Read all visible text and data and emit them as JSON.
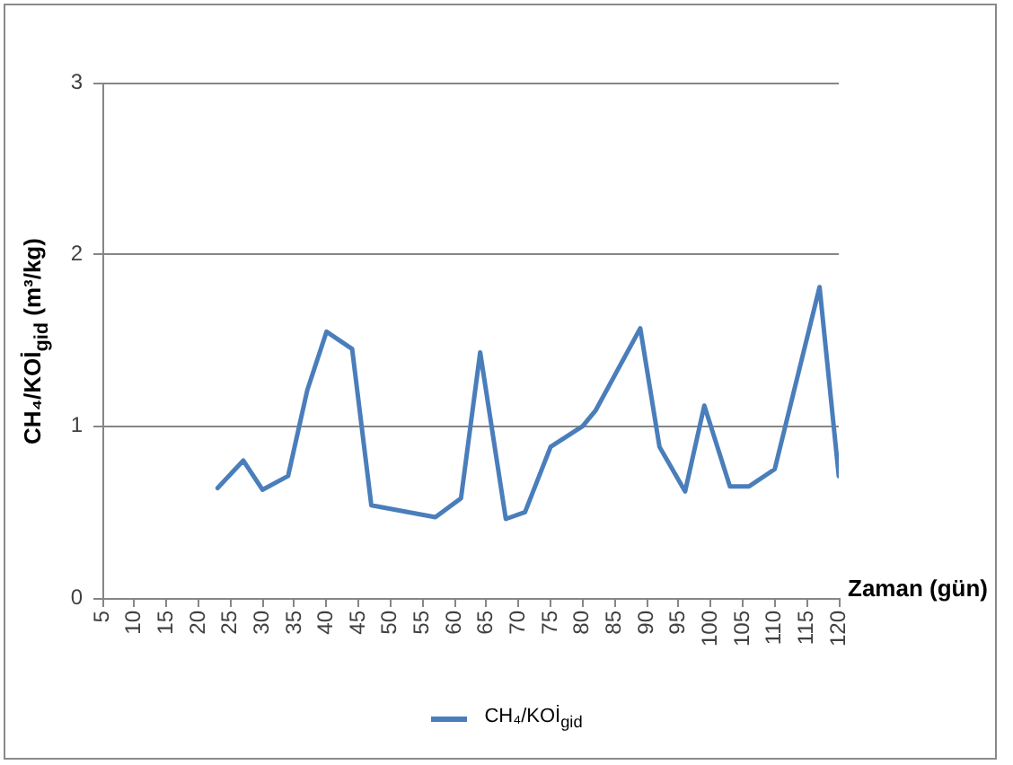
{
  "chart_data": {
    "type": "line",
    "xlabel": "Zaman (gün)",
    "ylabel": "CH₄/KOİ$_{gid}$ (m³/kg)",
    "x": [
      23,
      27,
      30,
      34,
      37,
      40,
      44,
      47,
      57,
      61,
      64,
      68,
      71,
      75,
      80,
      82,
      89,
      92,
      96,
      99,
      103,
      106,
      110,
      117,
      120
    ],
    "series": [
      {
        "name": "CH₄/KOİ$_{gid}$",
        "color": "#4a7ebb",
        "values": [
          0.64,
          0.8,
          0.63,
          0.71,
          1.21,
          1.55,
          1.45,
          0.54,
          0.47,
          0.58,
          1.43,
          0.46,
          0.5,
          0.88,
          1.0,
          1.09,
          1.57,
          0.88,
          0.62,
          1.12,
          0.65,
          0.65,
          0.75,
          1.81,
          0.71
        ]
      }
    ],
    "xlim": [
      5,
      120
    ],
    "xticks": [
      5,
      10,
      15,
      20,
      25,
      30,
      35,
      40,
      45,
      50,
      55,
      60,
      65,
      70,
      75,
      80,
      85,
      90,
      95,
      100,
      105,
      110,
      115,
      120
    ],
    "ylim": [
      0,
      3
    ],
    "yticks": [
      0,
      1,
      2,
      3
    ],
    "grid": "y",
    "legend": "bottom",
    "marker": "none",
    "line_style": "solid"
  }
}
